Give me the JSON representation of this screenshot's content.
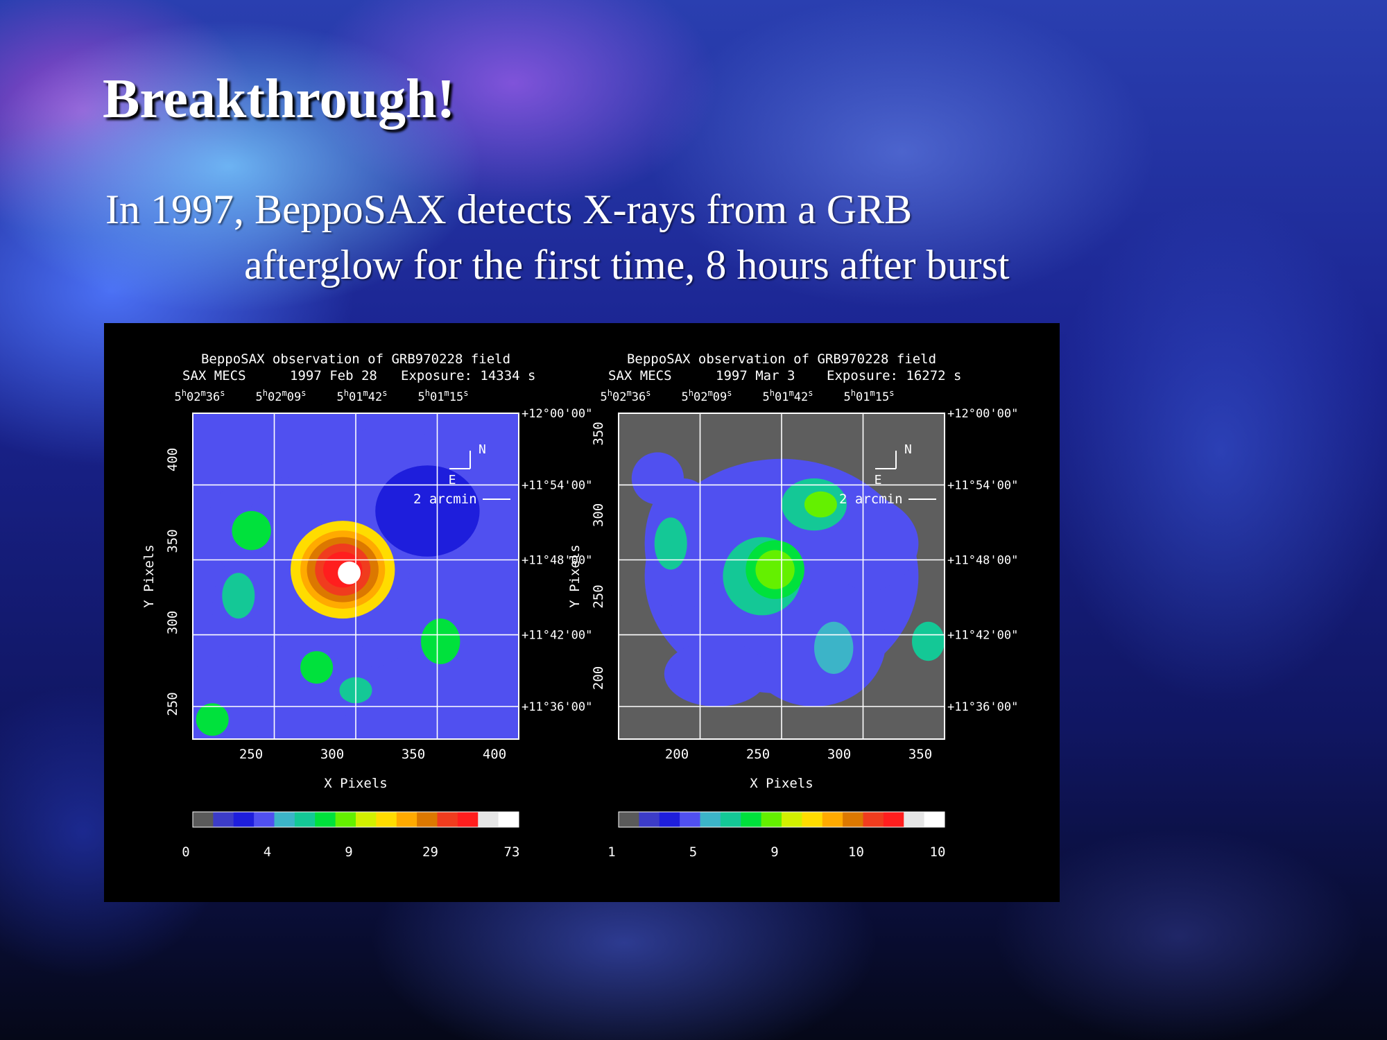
{
  "slide": {
    "title": "Breakthrough!",
    "subtitle_line1": "In 1997, BeppoSAX detects X-rays from a GRB",
    "subtitle_line2": "afterglow for the first time, 8 hours after burst"
  },
  "figure": {
    "panels": [
      {
        "header_line1": "BeppoSAX observation of GRB970228 field",
        "header_line2_instrument": "SAX MECS",
        "header_line2_date": "1997 Feb 28",
        "header_line2_exposure": "Exposure: 14334 s",
        "ra_labels": [
          "5h02m36s",
          "5h02m09s",
          "5h01m42s",
          "5h01m15s"
        ],
        "dec_labels": [
          "+12°00'00\"",
          "+11°54'00\"",
          "+11°48'00\"",
          "+11°42'00\"",
          "+11°36'00\""
        ],
        "x_ticks": [
          "250",
          "300",
          "350",
          "400"
        ],
        "y_ticks": [
          "400",
          "350",
          "300",
          "250"
        ],
        "xlabel": "X Pixels",
        "ylabel": "Y Pixels",
        "compass_n": "N",
        "compass_e": "E",
        "scale_label": "2 arcmin",
        "colorbar_ticks": [
          "0",
          "4",
          "9",
          "29",
          "73"
        ]
      },
      {
        "header_line1": "BeppoSAX observation of GRB970228 field",
        "header_line2_instrument": "SAX MECS",
        "header_line2_date": "1997 Mar  3",
        "header_line2_exposure": "Exposure: 16272 s",
        "ra_labels": [
          "5h02m36s",
          "5h02m09s",
          "5h01m42s",
          "5h01m15s"
        ],
        "dec_labels": [
          "+12°00'00\"",
          "+11°54'00\"",
          "+11°48'00\"",
          "+11°42'00\"",
          "+11°36'00\""
        ],
        "x_ticks": [
          "200",
          "250",
          "300",
          "350"
        ],
        "y_ticks": [
          "350",
          "300",
          "250",
          "200"
        ],
        "xlabel": "X Pixels",
        "ylabel": "Y Pixels",
        "compass_n": "N",
        "compass_e": "E",
        "scale_label": "2 arcmin",
        "colorbar_ticks": [
          "1",
          "5",
          "9",
          "10",
          "10"
        ]
      }
    ],
    "colorbar_colors": [
      "#5a5a5a",
      "#3c3cc8",
      "#1e1edc",
      "#5050f0",
      "#3cb4c8",
      "#14c896",
      "#00e13c",
      "#64f000",
      "#d2f000",
      "#ffdc00",
      "#ffaa00",
      "#dc7800",
      "#f03c1e",
      "#ff1e1e",
      "#e6e6e6",
      "#ffffff"
    ]
  }
}
